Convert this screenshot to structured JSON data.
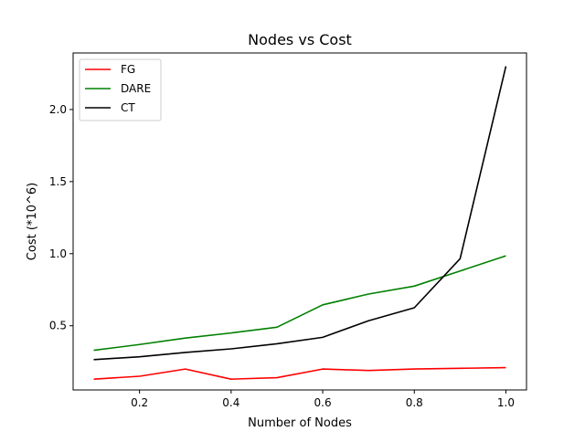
{
  "chart_data": {
    "type": "line",
    "title": "Nodes vs Cost",
    "xlabel": "Number of Nodes",
    "ylabel": "Cost (*10^6)",
    "x": [
      0.1,
      0.2,
      0.3,
      0.4,
      0.5,
      0.6,
      0.7,
      0.8,
      0.9,
      1.0
    ],
    "xlim": [
      0.055,
      1.045
    ],
    "ylim": [
      0.055,
      2.392
    ],
    "xticks": [
      0.2,
      0.4,
      0.6,
      0.8,
      1.0
    ],
    "xtick_labels": [
      "0.2",
      "0.4",
      "0.6",
      "0.8",
      "1.0"
    ],
    "yticks": [
      0.5,
      1.0,
      1.5,
      2.0
    ],
    "ytick_labels": [
      "0.5",
      "1.0",
      "1.5",
      "2.0"
    ],
    "grid": false,
    "legend_position": "upper-left",
    "series": [
      {
        "name": "FG",
        "color": "#ff0000",
        "values": [
          0.13,
          0.15,
          0.2,
          0.13,
          0.14,
          0.2,
          0.19,
          0.2,
          0.205,
          0.21
        ]
      },
      {
        "name": "DARE",
        "color": "#008000",
        "values": [
          0.33,
          0.37,
          0.415,
          0.45,
          0.49,
          0.645,
          0.72,
          0.775,
          0.88,
          0.985
        ]
      },
      {
        "name": "CT",
        "color": "#000000",
        "values": [
          0.265,
          0.285,
          0.315,
          0.34,
          0.375,
          0.42,
          0.535,
          0.625,
          0.965,
          2.3
        ]
      }
    ]
  }
}
